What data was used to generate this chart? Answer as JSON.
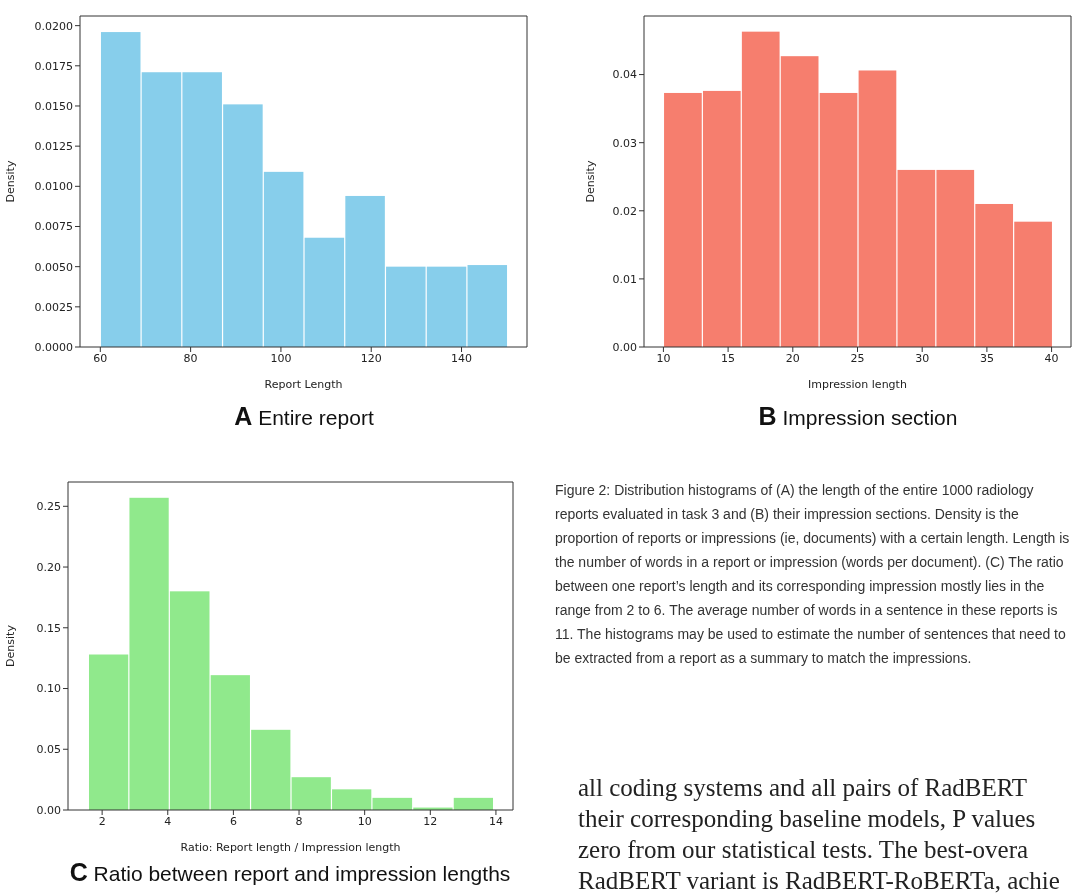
{
  "chart_data": [
    {
      "type": "histogram",
      "title": "A Entire report",
      "xlabel": "Report Length",
      "ylabel": "Density",
      "color": "#87ceeb",
      "bins": [
        60,
        69,
        78,
        87,
        96,
        105,
        114,
        123,
        132,
        141,
        150
      ],
      "values": [
        0.0196,
        0.0171,
        0.0171,
        0.0151,
        0.0109,
        0.0068,
        0.0094,
        0.005,
        0.005,
        0.0051
      ],
      "xlim": [
        55.5,
        154.5
      ],
      "xticks": [
        60,
        80,
        100,
        120,
        140
      ],
      "ylim": [
        0,
        0.0206
      ],
      "yticks": [
        {
          "value": 0,
          "label": "0.0000"
        },
        {
          "value": 0.0025,
          "label": "0.0025"
        },
        {
          "value": 0.005,
          "label": "0.0050"
        },
        {
          "value": 0.0075,
          "label": "0.0075"
        },
        {
          "value": 0.01,
          "label": "0.0100"
        },
        {
          "value": 0.0125,
          "label": "0.0125"
        },
        {
          "value": 0.015,
          "label": "0.0150"
        },
        {
          "value": 0.0175,
          "label": "0.0175"
        },
        {
          "value": 0.02,
          "label": "0.0200"
        }
      ]
    },
    {
      "type": "histogram",
      "title": "B Impression section",
      "xlabel": "Impression length",
      "ylabel": "Density",
      "color": "#f67e6e",
      "bins": [
        10,
        13,
        16,
        19,
        22,
        25,
        28,
        31,
        34,
        37,
        40
      ],
      "values": [
        0.0373,
        0.0376,
        0.0463,
        0.0427,
        0.0373,
        0.0406,
        0.026,
        0.026,
        0.021,
        0.0184
      ],
      "xlim": [
        8.5,
        41.5
      ],
      "xticks": [
        10,
        15,
        20,
        25,
        30,
        35,
        40
      ],
      "ylim": [
        0,
        0.0486
      ],
      "yticks": [
        {
          "value": 0,
          "label": "0.00"
        },
        {
          "value": 0.01,
          "label": "0.01"
        },
        {
          "value": 0.02,
          "label": "0.02"
        },
        {
          "value": 0.03,
          "label": "0.03"
        },
        {
          "value": 0.04,
          "label": "0.04"
        }
      ]
    },
    {
      "type": "histogram",
      "title": "C Ratio between report and impression lengths",
      "xlabel": "Ratio: Report length / Impression length",
      "ylabel": "Density",
      "color": "#90e98c",
      "bins": [
        1.58,
        2.81,
        4.04,
        5.28,
        6.51,
        7.74,
        8.97,
        10.2,
        11.44,
        12.67,
        13.9
      ],
      "values": [
        0.128,
        0.257,
        0.18,
        0.111,
        0.066,
        0.027,
        0.017,
        0.01,
        0.002,
        0.01
      ],
      "xlim": [
        0.96,
        14.52
      ],
      "xticks": [
        2,
        4,
        6,
        8,
        10,
        12,
        14
      ],
      "ylim": [
        0,
        0.27
      ],
      "yticks": [
        {
          "value": 0,
          "label": "0.00"
        },
        {
          "value": 0.05,
          "label": "0.05"
        },
        {
          "value": 0.1,
          "label": "0.10"
        },
        {
          "value": 0.15,
          "label": "0.15"
        },
        {
          "value": 0.2,
          "label": "0.20"
        },
        {
          "value": 0.25,
          "label": "0.25"
        }
      ],
      "annotations": [
        "Figure 2: Distribution histograms of (A) the length of the entire 1000 radiology reports evaluated in task 3 and (B) their impression sections. Density is the proportion of reports or impressions (ie, documents) with a certain length. Length is the number of words in a report or impression (words per document). (C) The ratio between one report’s length and its corresponding impression mostly lies in the range from 2 to 6. The average number of words in a sentence in these reports is 11. The histograms may be used to estimate the number of sentences that need to be extracted from a report as a summary to match the impressions.",
        "all coding systems and all pairs of RadBERT",
        "their corresponding baseline models, P values",
        "zero from our statistical tests. The best-overa",
        "RadBERT variant is RadBERT-RoBERTa, achie"
      ]
    }
  ]
}
